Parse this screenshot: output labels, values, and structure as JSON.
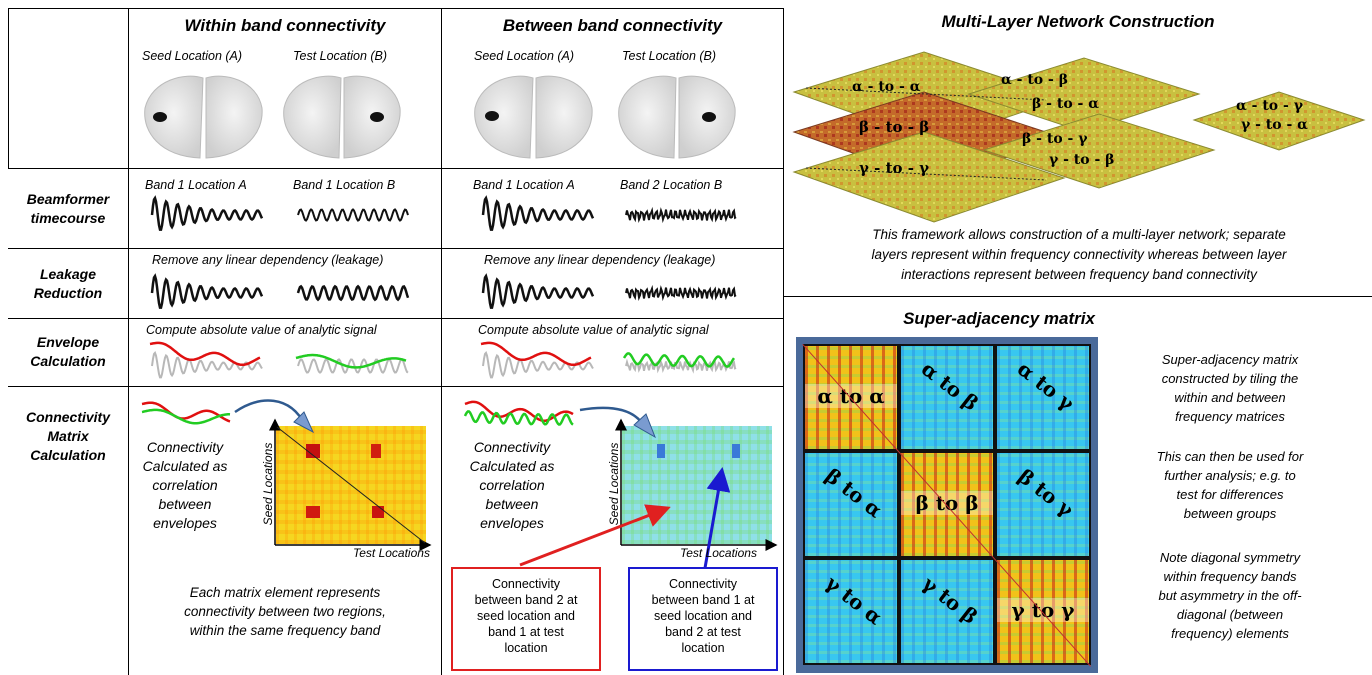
{
  "columns": {
    "within": {
      "header": "Within band connectivity",
      "seed_label": "Seed Location (A)",
      "test_label": "Test Location (B)",
      "tc_left": "Band 1 Location A",
      "tc_right": "Band 1 Location B",
      "leak_note": "Remove any linear dependency (leakage)",
      "env_note": "Compute absolute value of analytic signal",
      "conn_text": [
        "Connectivity",
        "Calculated as",
        "correlation",
        "between",
        "envelopes"
      ],
      "axis_y": "Seed Locations",
      "axis_x": "Test Locations",
      "caption": [
        "Each matrix element represents",
        "connectivity between two regions,",
        "within the same frequency band"
      ]
    },
    "between": {
      "header": "Between band connectivity",
      "seed_label": "Seed Location (A)",
      "test_label": "Test Location (B)",
      "tc_left": "Band 1 Location A",
      "tc_right": "Band 2 Location B",
      "leak_note": "Remove any linear dependency (leakage)",
      "env_note": "Compute absolute value of analytic signal",
      "conn_text": [
        "Connectivity",
        "Calculated as",
        "correlation",
        "between",
        "envelopes"
      ],
      "axis_y": "Seed Locations",
      "axis_x": "Test Locations",
      "box_red": [
        "Connectivity",
        "between band 2 at",
        "seed location and",
        "band 1 at test",
        "location"
      ],
      "box_blue": [
        "Connectivity",
        "between band 1 at",
        "seed location and",
        "band 2 at test",
        "location"
      ]
    }
  },
  "row_labels": {
    "beamformer": [
      "Beamformer",
      "timecourse"
    ],
    "leakage": [
      "Leakage",
      "Reduction"
    ],
    "envelope": [
      "Envelope",
      "Calculation"
    ],
    "connectivity": [
      "Connectivity",
      "Matrix",
      "Calculation"
    ]
  },
  "multilayer": {
    "header": "Multi-Layer Network Construction",
    "planes": [
      "α - to - α",
      "β - to - β",
      "γ - to - γ",
      "α - to - β",
      "β - to - α",
      "β - to - γ",
      "γ - to - β",
      "α - to - γ",
      "γ - to - α"
    ],
    "caption": [
      "This framework allows construction of a multi-layer network; separate",
      "layers represent within frequency connectivity whereas between layer",
      "interactions represent between frequency band connectivity"
    ]
  },
  "superadj": {
    "header": "Super-adjacency matrix",
    "cells": [
      [
        "α to α",
        "",
        ""
      ],
      [
        "",
        "β to β",
        ""
      ],
      [
        "",
        "",
        "γ to γ"
      ]
    ],
    "offdiag": {
      "ab": [
        "α",
        "to",
        "β"
      ],
      "ag": [
        "α",
        "to",
        "γ"
      ],
      "ba": [
        "β",
        "to",
        "α"
      ],
      "bg": [
        "β",
        "to",
        "γ"
      ],
      "ga": [
        "γ",
        "to",
        "α"
      ],
      "gb": [
        "γ",
        "to",
        "β"
      ]
    },
    "notes": [
      [
        "Super-adjacency matrix",
        "constructed by tiling the",
        "within and between",
        "frequency matrices"
      ],
      [
        "This can then be used for",
        "further analysis; e.g. to",
        "test for differences",
        "between groups"
      ],
      [
        "Note diagonal symmetry",
        "within frequency bands",
        "but asymmetry in the off-",
        "diagonal (between",
        "frequency) elements"
      ]
    ]
  },
  "colors": {
    "red_envelope": "#e01010",
    "green_envelope": "#22cc22",
    "grey_signal": "#b8b8b8",
    "red_box": "#e02020",
    "blue_box": "#1a1ad0",
    "warm_matrix": "#f2c21a",
    "cool_matrix": "#38c7f0",
    "frame_blue": "#4a6a9a"
  }
}
